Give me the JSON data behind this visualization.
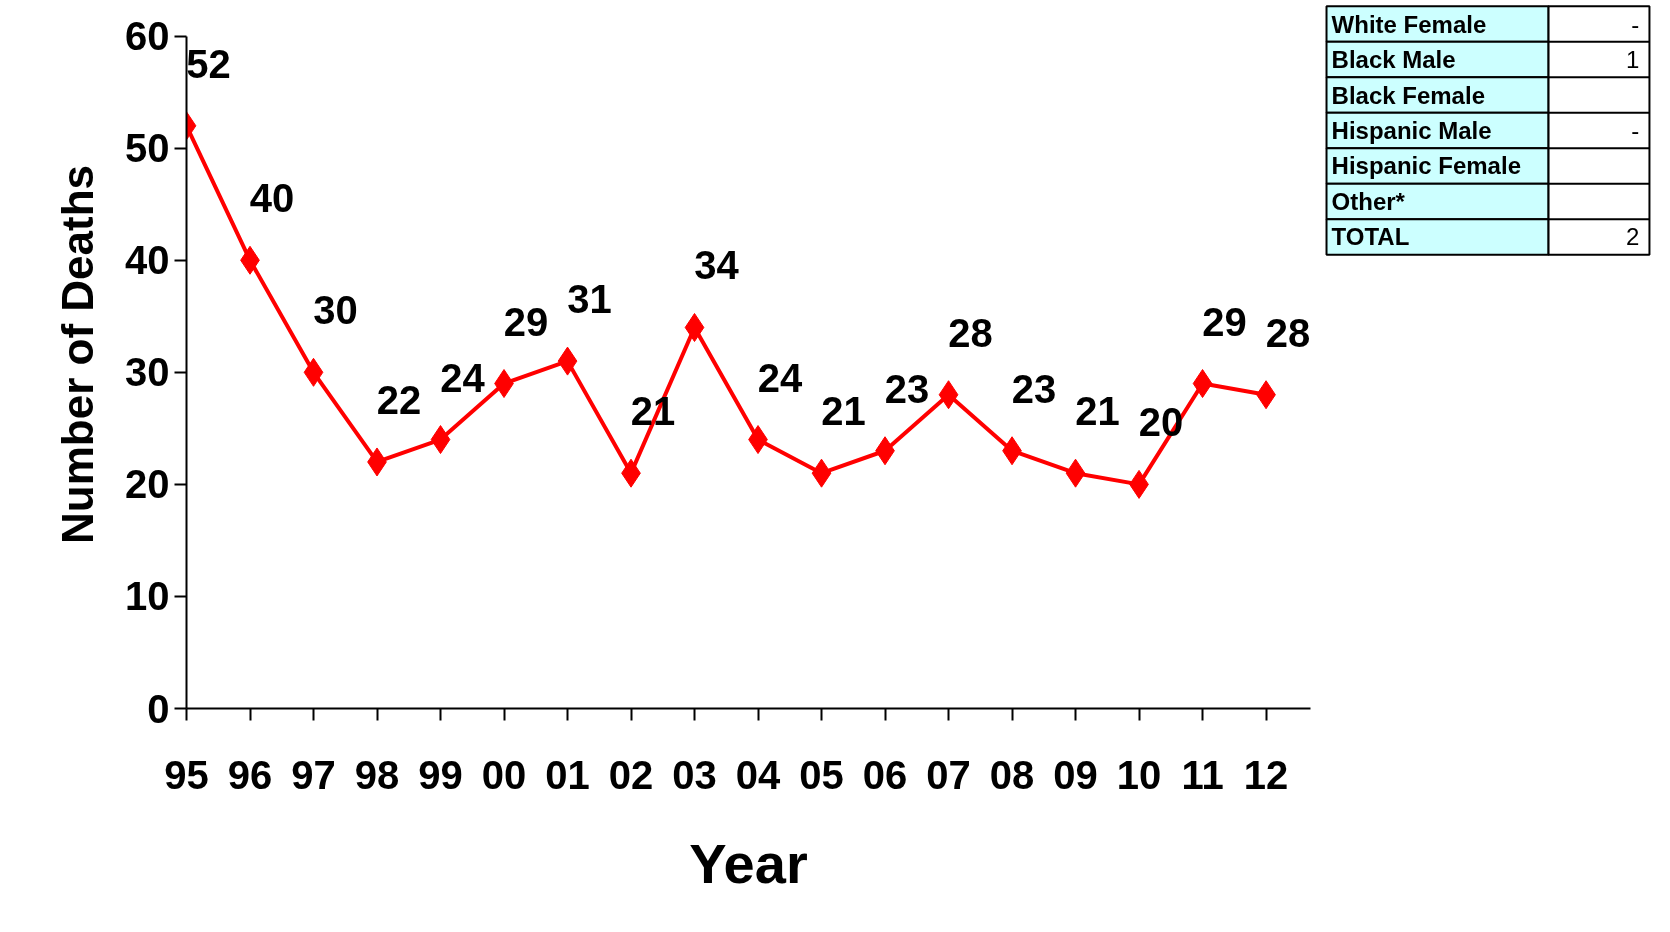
{
  "chart_data": [
    {
      "type": "line",
      "xlabel": "Year",
      "ylabel": "Number of Deaths",
      "categories": [
        "95",
        "96",
        "97",
        "98",
        "99",
        "00",
        "01",
        "02",
        "03",
        "04",
        "05",
        "06",
        "07",
        "08",
        "09",
        "10",
        "11",
        "12"
      ],
      "series": [
        {
          "color": "#ff0000",
          "values": [
            52,
            40,
            30,
            22,
            24,
            29,
            31,
            21,
            34,
            24,
            21,
            23,
            28,
            23,
            21,
            20,
            29,
            28
          ]
        }
      ],
      "ylim": [
        0,
        60
      ],
      "yticks": [
        0,
        10,
        20,
        30,
        40,
        50,
        60
      ],
      "marker": "diamond",
      "data_labels": true
    },
    {
      "type": "other",
      "categories": [
        "White Female",
        "Black Male",
        "Black Female",
        "Hispanic Male",
        "Hispanic Female",
        "Other*",
        "TOTAL"
      ],
      "value_labels": [
        "-",
        "1",
        null,
        "-",
        null,
        null,
        "2"
      ],
      "color": "#ccffff"
    }
  ]
}
